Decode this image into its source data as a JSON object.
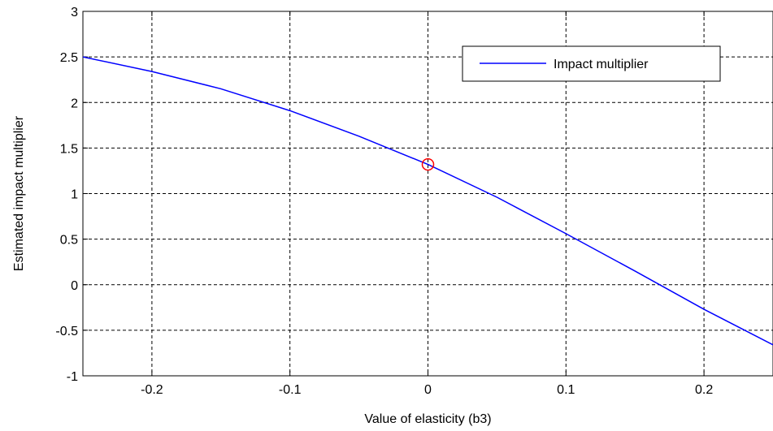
{
  "chart_data": {
    "type": "line",
    "title": "",
    "xlabel": "Value of elasticity (b3)",
    "ylabel": "Estimated impact multiplier",
    "xlim": [
      -0.25,
      0.25
    ],
    "ylim": [
      -1,
      3
    ],
    "xticks": [
      -0.2,
      -0.1,
      0,
      0.1,
      0.2
    ],
    "xtick_labels": [
      "-0.2",
      "-0.1",
      "0",
      "0.1",
      "0.2"
    ],
    "yticks": [
      -1,
      -0.5,
      0,
      0.5,
      1,
      1.5,
      2,
      2.5,
      3
    ],
    "ytick_labels": [
      "-1",
      "-0.5",
      "0",
      "0.5",
      "1",
      "1.5",
      "2",
      "2.5",
      "3"
    ],
    "grid": true,
    "grid_style": "dashed",
    "legend_position": "top-right",
    "series": [
      {
        "name": "Impact multiplier",
        "color": "#0000ff",
        "x": [
          -0.25,
          -0.2,
          -0.15,
          -0.1,
          -0.05,
          0,
          0.05,
          0.1,
          0.15,
          0.2,
          0.25
        ],
        "y": [
          2.5,
          2.34,
          2.15,
          1.91,
          1.63,
          1.32,
          0.96,
          0.56,
          0.15,
          -0.27,
          -0.66
        ]
      }
    ],
    "markers": [
      {
        "x": 0,
        "y": 1.32,
        "shape": "circle",
        "color": "#ff0000"
      }
    ]
  }
}
